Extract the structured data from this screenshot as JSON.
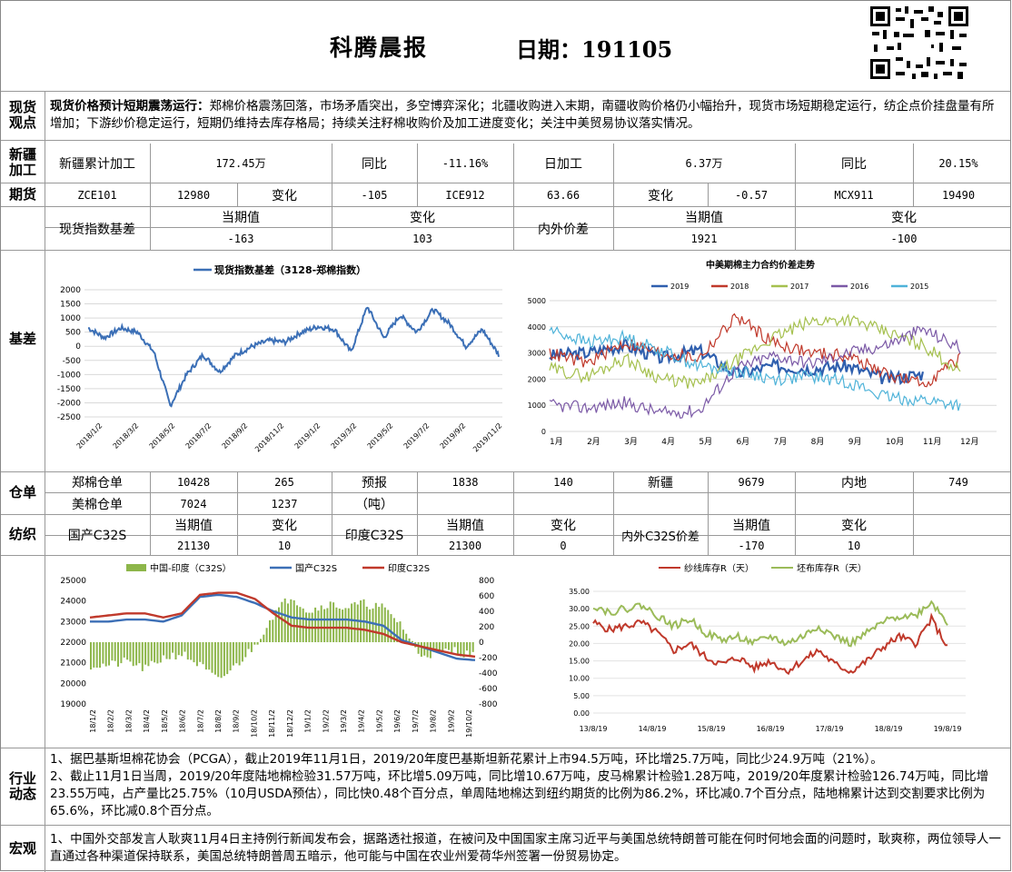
{
  "header": {
    "title": "科腾晨报",
    "date_label": "日期：191105"
  },
  "spot": {
    "label": "现货观点",
    "headline": "现货价格预计短期震荡运行：",
    "body": "郑棉价格震荡回落，市场矛盾突出，多空博弈深化；北疆收购进入末期，南疆收购价格仍小幅抬升，现货市场短期稳定运行，纺企点价挂盘量有所增加；下游纱价稳定运行，短期仍维持去库存格局；持续关注籽棉收购价及加工进度变化；关注中美贸易协议落实情况。"
  },
  "xinjiang": {
    "label": "新疆加工",
    "cells": [
      "新疆累计加工",
      "172.45万",
      "同比",
      "-11.16%",
      "日加工",
      "6.37万",
      "同比",
      "20.15%"
    ]
  },
  "futures": {
    "label": "期货",
    "row1": [
      "ZCE101",
      "12980",
      "变化",
      "-105",
      "ICE912",
      "63.66",
      "变化",
      "-0.57",
      "MCX911",
      "19490"
    ],
    "basis_name": "现货指数基差",
    "cur": "当期值",
    "chg": "变化",
    "basis_val": "-163",
    "basis_chg": "103",
    "spread_name": "内外价差",
    "spread_val": "1921",
    "spread_chg": "-100"
  },
  "basis": {
    "label": "基差"
  },
  "warrant": {
    "label": "仓单",
    "row1": [
      "郑棉仓单",
      "10428",
      "265",
      "预报",
      "1838",
      "140",
      "新疆",
      "9679",
      "内地",
      "749"
    ],
    "row2": [
      "美棉仓单",
      "7024",
      "1237",
      "（吨）"
    ]
  },
  "yarn": {
    "label": "纺织",
    "head": [
      "当期值",
      "变化",
      "当期值",
      "变化",
      "当期值",
      "变化"
    ],
    "names": [
      "国产C32S",
      "印度C32S",
      "内外C32S价差"
    ],
    "vals": [
      "21130",
      "10",
      "21300",
      "0",
      "-170",
      "10"
    ]
  },
  "industry": {
    "label": "行业动态",
    "p1": "1、据巴基斯坦棉花协会（PCGA），截止2019年11月1日，2019/20年度巴基斯坦新花累计上市94.5万吨，环比增25.7万吨，同比少24.9万吨（21%）。",
    "p2": "2、截止11月1日当周，2019/20年度陆地棉检验31.57万吨，环比增5.09万吨，同比增10.67万吨，皮马棉累计检验1.28万吨，2019/20年度累计检验126.74万吨，同比增23.55万吨，占产量比25.75%（10月USDA预估），同比快0.48个百分点，单周陆地棉达到纽约期货的比例为86.2%，环比减0.7个百分点，陆地棉累计达到交割要求比例为65.6%，环比减0.8个百分点。"
  },
  "macro": {
    "label": "宏观",
    "p1": "1、中国外交部发言人耿爽11月4日主持例行新闻发布会，据路透社报道，在被问及中国国家主席习近平与美国总统特朗普可能在何时何地会面的问题时，耿爽称，两位领导人一直通过各种渠道保持联系，美国总统特朗普周五暗示，他可能与中国在农业州爱荷华州签署一份贸易协定。"
  },
  "chart_data": [
    {
      "type": "line",
      "title": "现货指数基差（3128-郑棉指数）",
      "series": [
        {
          "name": "现货指数基差（3128-郑棉指数）",
          "color": "#3b6fb6",
          "x": [
            "2018/1/2",
            "2018/2/1",
            "2018/3/1",
            "2018/4/1",
            "2018/5/1",
            "2018/5/20",
            "2018/6/10",
            "2018/7/1",
            "2018/8/1",
            "2018/9/1",
            "2018/10/1",
            "2018/11/1",
            "2018/12/1",
            "2019/1/2",
            "2019/2/1",
            "2019/3/1",
            "2019/4/1",
            "2019/5/1",
            "2019/5/15",
            "2019/6/1",
            "2019/7/1",
            "2019/7/20",
            "2019/8/1",
            "2019/9/1",
            "2019/10/1",
            "2019/11/2"
          ],
          "values": [
            650,
            300,
            650,
            500,
            -200,
            -2100,
            -1000,
            -300,
            -900,
            -300,
            0,
            200,
            150,
            500,
            700,
            600,
            -200,
            1400,
            300,
            1100,
            500,
            1300,
            800,
            0,
            600,
            -300
          ]
        }
      ],
      "ylim": [
        -2500,
        2000
      ],
      "yticks": [
        "2000",
        "1500",
        "1000",
        "500",
        "0",
        "-500",
        "-1000",
        "-1500",
        "-2000",
        "-2500"
      ],
      "xticks": [
        "2018/1/2",
        "2018/3/2",
        "2018/5/2",
        "2018/7/2",
        "2018/9/2",
        "2018/11/2",
        "2019/1/2",
        "2019/3/2",
        "2019/5/2",
        "2019/7/2",
        "2019/9/2",
        "2019/11/2"
      ]
    },
    {
      "type": "line",
      "title": "中美期棉主力合约价差走势",
      "xticks": [
        "1月",
        "2月",
        "3月",
        "4月",
        "5月",
        "6月",
        "7月",
        "8月",
        "9月",
        "10月",
        "11月",
        "12月"
      ],
      "yticks": [
        "5000",
        "4000",
        "3000",
        "2000",
        "1000",
        "0"
      ],
      "ylim": [
        0,
        5000
      ],
      "series": [
        {
          "name": "2019",
          "color": "#2f5fae",
          "values": [
            2900,
            3000,
            3300,
            2800,
            3100,
            2200,
            2500,
            2400,
            2500,
            2000,
            2200
          ]
        },
        {
          "name": "2018",
          "color": "#c0392b",
          "values": [
            3000,
            2600,
            3400,
            3000,
            2800,
            4400,
            3400,
            3000,
            2900,
            2200,
            1800,
            2800
          ]
        },
        {
          "name": "2017",
          "color": "#a5c04e",
          "values": [
            2400,
            2100,
            2800,
            2000,
            1800,
            2700,
            3600,
            4200,
            4300,
            3800,
            3300,
            2300
          ]
        },
        {
          "name": "2016",
          "color": "#7b59a6",
          "values": [
            1000,
            900,
            1100,
            700,
            800,
            2400,
            2900,
            2600,
            3000,
            3300,
            3900,
            3200
          ]
        },
        {
          "name": "2015",
          "color": "#4fb3d9",
          "values": [
            3900,
            3400,
            3600,
            3100,
            2500,
            2300,
            2000,
            2100,
            1900,
            1300,
            1200,
            1000
          ]
        }
      ]
    },
    {
      "type": "bar+line",
      "legend": [
        "中国-印度（C32S）",
        "国产C32S",
        "印度C32S"
      ],
      "xticks": [
        "18/1/2",
        "18/2/2",
        "18/3/2",
        "18/4/2",
        "18/5/2",
        "18/6/2",
        "18/7/2",
        "18/8/2",
        "18/9/2",
        "18/10/2",
        "18/11/2",
        "18/12/2",
        "19/1/2",
        "19/2/2",
        "19/3/2",
        "19/4/2",
        "19/5/2",
        "19/6/2",
        "19/7/2",
        "19/8/2",
        "19/9/2",
        "19/10/2"
      ],
      "yticks_left": [
        "25000",
        "24000",
        "23000",
        "22000",
        "21000",
        "20000",
        "19000"
      ],
      "yticks_right": [
        "800",
        "600",
        "400",
        "200",
        "0",
        "-200",
        "-400",
        "-600",
        "-800"
      ],
      "ylim_left": [
        19000,
        25000
      ],
      "ylim_right": [
        -800,
        800
      ],
      "series": [
        {
          "name": "中国-印度（C32S）",
          "color": "#8db64a",
          "axis": "right",
          "values": [
            -300,
            -300,
            -250,
            -350,
            -200,
            -150,
            -300,
            -500,
            -300,
            -50,
            350,
            600,
            400,
            500,
            450,
            500,
            450,
            250,
            -150,
            -150,
            -100,
            -180
          ]
        },
        {
          "name": "国产C32S",
          "color": "#3c6fb6",
          "axis": "left",
          "values": [
            23000,
            23000,
            23100,
            23100,
            23000,
            23300,
            24200,
            24300,
            24200,
            23900,
            23500,
            23200,
            23100,
            23100,
            23100,
            23000,
            22800,
            22100,
            21800,
            21500,
            21200,
            21130
          ]
        },
        {
          "name": "印度C32S",
          "color": "#c0392b",
          "axis": "left",
          "values": [
            23200,
            23300,
            23400,
            23400,
            23200,
            23400,
            24300,
            24400,
            24400,
            24100,
            23400,
            22800,
            22700,
            22700,
            22700,
            22600,
            22400,
            22000,
            21800,
            21600,
            21400,
            21300
          ]
        }
      ]
    },
    {
      "type": "line",
      "legend": [
        "纱线库存R（天）",
        "坯布库存R（天）"
      ],
      "xticks": [
        "13/8/19",
        "14/8/19",
        "15/8/19",
        "16/8/19",
        "17/8/19",
        "18/8/19",
        "19/8/19"
      ],
      "yticks": [
        "35.00",
        "30.00",
        "25.00",
        "20.00",
        "15.00",
        "10.00",
        "5.00",
        "0.00"
      ],
      "ylim": [
        0,
        35
      ],
      "series": [
        {
          "name": "纱线库存R（天）",
          "color": "#c0392b",
          "values": [
            26,
            24,
            25,
            26,
            23,
            18,
            20,
            16,
            14,
            16,
            13,
            15,
            12,
            15,
            18,
            14,
            12,
            15,
            19,
            22,
            20,
            27,
            19
          ]
        },
        {
          "name": "坯布库存R（天）",
          "color": "#9bbb59",
          "values": [
            31,
            29,
            30,
            31,
            28,
            25,
            27,
            23,
            21,
            22,
            20,
            22,
            20,
            22,
            25,
            22,
            20,
            23,
            26,
            28,
            28,
            32,
            26
          ]
        }
      ]
    }
  ]
}
